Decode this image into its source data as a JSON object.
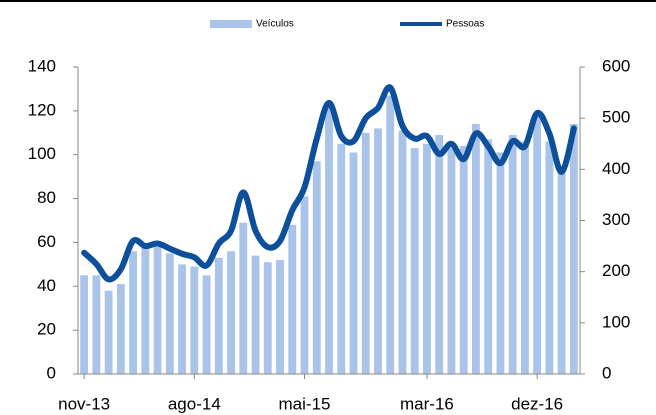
{
  "chart_data": {
    "type": "bar_line",
    "categories": [
      "nov-13",
      null,
      null,
      null,
      null,
      null,
      null,
      null,
      null,
      "ago-14",
      null,
      null,
      null,
      null,
      null,
      null,
      null,
      null,
      "mai-15",
      null,
      null,
      null,
      null,
      null,
      null,
      null,
      null,
      null,
      "mar-16",
      null,
      null,
      null,
      null,
      null,
      null,
      null,
      null,
      "dez-16",
      null,
      null,
      null
    ],
    "series": [
      {
        "name": "Veículos",
        "type": "bar",
        "axis": "y",
        "color": "#a9c4e8",
        "values": [
          45,
          45,
          38,
          41,
          56,
          58,
          58,
          55,
          50,
          49,
          45,
          53,
          56,
          69,
          54,
          51,
          52,
          68,
          81,
          97,
          122,
          105,
          101,
          110,
          112,
          127,
          111,
          103,
          105,
          109,
          103,
          104,
          114,
          107,
          101,
          109,
          106,
          118,
          106,
          92,
          114
        ]
      },
      {
        "name": "Pessoas",
        "type": "line",
        "axis": "y2",
        "color": "#0d4f9a",
        "values": [
          237,
          215,
          185,
          205,
          260,
          250,
          255,
          245,
          235,
          228,
          212,
          255,
          280,
          355,
          280,
          248,
          260,
          320,
          365,
          460,
          530,
          465,
          455,
          500,
          520,
          560,
          485,
          460,
          465,
          430,
          450,
          420,
          470,
          445,
          412,
          455,
          445,
          510,
          470,
          395,
          480
        ]
      }
    ],
    "ylim": [
      0,
      140
    ],
    "yticks": [
      0,
      20,
      40,
      60,
      80,
      100,
      120,
      140
    ],
    "y2lim": [
      0,
      600
    ],
    "y2ticks": [
      0,
      100,
      200,
      300,
      400,
      500,
      600
    ],
    "legend": "top"
  }
}
